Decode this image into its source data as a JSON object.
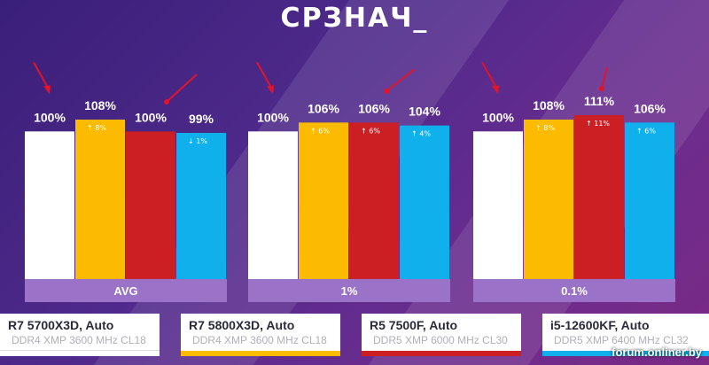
{
  "header": {
    "title": "СРЗНАЧ_"
  },
  "colors": {
    "white_bar": "#ffffff",
    "orange_bar": "#fdbb00",
    "red_bar": "#cc1f24",
    "blue_bar": "#0fb0ec",
    "group_label_bg": "#9a72c8",
    "arrow": "#e0142a"
  },
  "chart_data": {
    "type": "bar",
    "categories": [
      "AVG",
      "1%",
      "0.1%"
    ],
    "ylim": [
      0,
      111
    ],
    "series": [
      {
        "name": "R7 5700X3D, Auto",
        "color": "#ffffff",
        "values": [
          100,
          100,
          100
        ],
        "labels": [
          "100%",
          "100%",
          "100%"
        ],
        "badges": [
          "",
          "",
          ""
        ]
      },
      {
        "name": "R7 5800X3D, Auto",
        "color": "#fdbb00",
        "values": [
          108,
          106,
          108
        ],
        "labels": [
          "108%",
          "106%",
          "108%"
        ],
        "badges": [
          "↑ 8%",
          "↑ 6%",
          "↑ 8%"
        ]
      },
      {
        "name": "R5 7500F, Auto",
        "color": "#cc1f24",
        "values": [
          100,
          106,
          111
        ],
        "labels": [
          "100%",
          "106%",
          "111%"
        ],
        "badges": [
          "",
          "↑ 6%",
          "↑ 11%"
        ]
      },
      {
        "name": "i5-12600KF, Auto",
        "color": "#0fb0ec",
        "values": [
          99,
          104,
          106
        ],
        "labels": [
          "99%",
          "104%",
          "106%"
        ],
        "badges": [
          "↓ 1%",
          "↑ 4%",
          "↑ 6%"
        ]
      }
    ]
  },
  "legend": [
    {
      "name": "R7 5700X3D, Auto",
      "spec": "DDR4 XMP 3600 MHz CL18",
      "color": "#ffffff"
    },
    {
      "name": "R7 5800X3D, Auto",
      "spec": "DDR4 XMP 3600 MHz CL18",
      "color": "#fdbb00"
    },
    {
      "name": "R5 7500F, Auto",
      "spec": "DDR5 XMP 6000 MHz CL30",
      "color": "#cc1f24"
    },
    {
      "name": "i5-12600KF, Auto",
      "spec": "DDR5 XMP 6400 MHz CL32",
      "color": "#0fb0ec"
    }
  ],
  "watermark": "forum.onliner.by"
}
